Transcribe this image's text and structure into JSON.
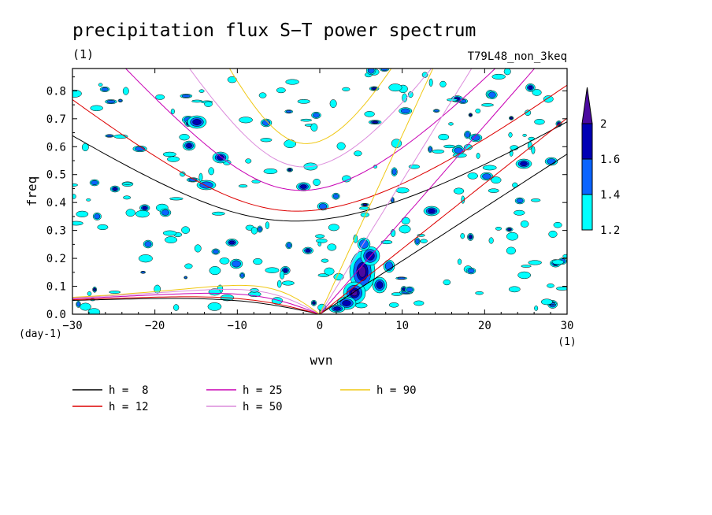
{
  "chart_data": {
    "type": "contour",
    "title": "precipitation flux S−T power spectrum",
    "subtitle_left": "(1)",
    "subtitle_right": "T79L48_non_3keq",
    "xlabel": "wvn",
    "ylabel": "freq",
    "x_unit": "(1)",
    "y_unit": "(day-1)",
    "xlim": [
      -30,
      30
    ],
    "ylim": [
      0,
      0.88
    ],
    "x_ticks": [
      "−30",
      "−20",
      "−10",
      "0",
      "10",
      "20",
      "30"
    ],
    "y_ticks": [
      "0.0",
      "0.1",
      "0.2",
      "0.3",
      "0.4",
      "0.5",
      "0.6",
      "0.7",
      "0.8"
    ],
    "colorbar": {
      "levels": [
        "1.2",
        "1.4",
        "1.6",
        "2"
      ],
      "colors": [
        "#00ffff",
        "#0a64ff",
        "#0000b4",
        "#4b0aa0"
      ]
    },
    "series": [
      {
        "name": "h =  8",
        "color": "#000000",
        "h": 8
      },
      {
        "name": "h = 12",
        "color": "#dd0000",
        "h": 12
      },
      {
        "name": "h = 25",
        "color": "#c800b4",
        "h": 25
      },
      {
        "name": "h = 50",
        "color": "#dc8cdc",
        "h": 50
      },
      {
        "name": "h = 90",
        "color": "#f0c814",
        "h": 90
      }
    ]
  }
}
